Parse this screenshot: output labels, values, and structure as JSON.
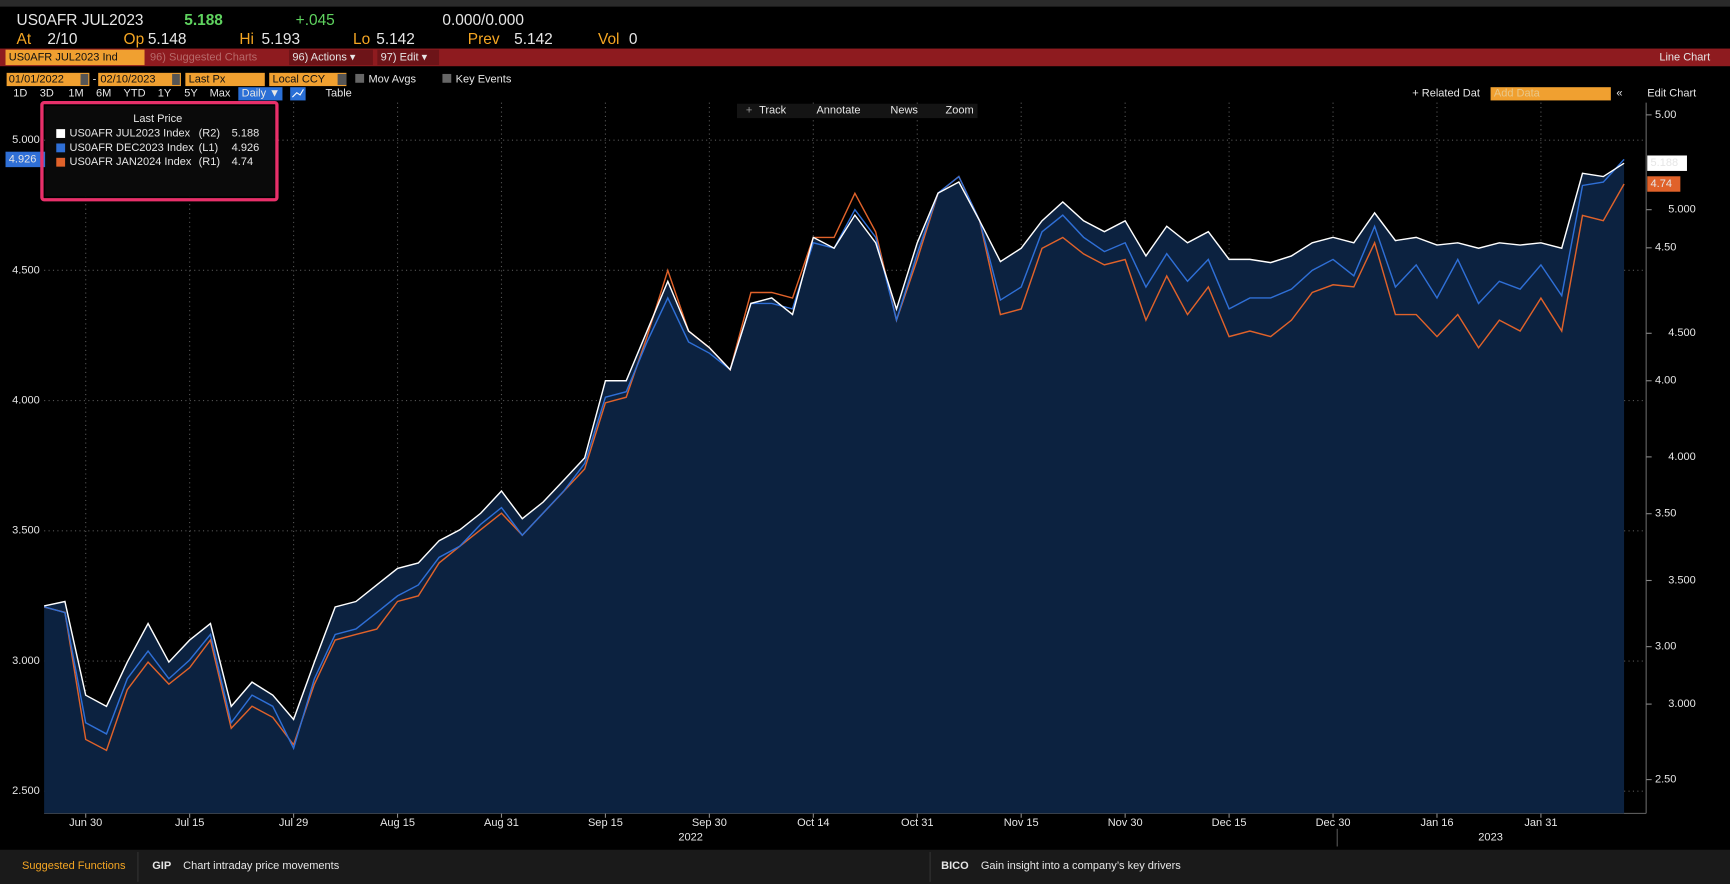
{
  "header": {
    "security": "US0AFR JUL2023",
    "last": "5.188",
    "change": "+.045",
    "bid_ask": "0.000/0.000",
    "stats": [
      {
        "label": "At",
        "value": "2/10"
      },
      {
        "label": "Op",
        "value": "5.148"
      },
      {
        "label": "Hi",
        "value": "5.193"
      },
      {
        "label": "Lo",
        "value": "5.142"
      },
      {
        "label": "Prev",
        "value": "5.142"
      },
      {
        "label": "Vol",
        "value": "0"
      }
    ]
  },
  "toolbar": {
    "ticker": "US0AFR JUL2023 Ind",
    "menus": [
      "96) Suggested Charts",
      "96) Actions ▾",
      "97) Edit ▾"
    ],
    "view": "Line Chart"
  },
  "controls": {
    "start": "01/01/2022",
    "end": "02/10/2023",
    "field": "Last Px",
    "currency": "Local CCY",
    "toggles": [
      "Mov Avgs",
      "Key Events"
    ],
    "periods": [
      "1D",
      "3D",
      "1M",
      "6M",
      "YTD",
      "1Y",
      "5Y",
      "Max"
    ],
    "frequency": "Daily ▼",
    "table": "Table",
    "related": "+ Related Dat",
    "add_data": "Add Data",
    "edit": "Edit Chart"
  },
  "chart_tools": [
    "Track",
    "Annotate",
    "News",
    "Zoom"
  ],
  "chart_data": {
    "type": "line",
    "legend_title": "Last Price",
    "categories": [
      null,
      null,
      "Jun 30",
      null,
      null,
      null,
      null,
      "Jul 15",
      null,
      null,
      null,
      null,
      "Jul 29",
      null,
      null,
      null,
      null,
      "Aug 15",
      null,
      null,
      null,
      null,
      "Aug 31",
      null,
      null,
      null,
      null,
      "Sep 15",
      null,
      null,
      null,
      null,
      "Sep 30",
      null,
      null,
      null,
      null,
      "Oct 14",
      null,
      null,
      null,
      null,
      "Oct 31",
      null,
      null,
      null,
      null,
      "Nov 15",
      null,
      null,
      null,
      null,
      "Nov 30",
      null,
      null,
      null,
      null,
      "Dec 15",
      null,
      null,
      null,
      null,
      "Dec 30",
      null,
      null,
      null,
      null,
      "Jan 16",
      null,
      null,
      null,
      null,
      "Jan 31",
      null,
      null,
      null,
      null
    ],
    "year_labels": [
      "2022",
      "2023"
    ],
    "ylim": [
      2.415,
      5.144
    ],
    "yticks": [
      {
        "value": 2.5,
        "label": "2.500"
      },
      {
        "value": 3,
        "label": "3.000"
      },
      {
        "value": 3.5,
        "label": "3.500"
      },
      {
        "value": 4,
        "label": "4.000"
      },
      {
        "value": 4.5,
        "label": "4.500"
      },
      {
        "value": 5,
        "label": "5.000"
      }
    ],
    "y2lim": [
      2.373,
      5.046
    ],
    "y2ticks": [
      {
        "value": 2.5,
        "label": "2.50"
      },
      {
        "value": 3,
        "label": "3.00"
      },
      {
        "value": 3.5,
        "label": "3.50"
      },
      {
        "value": 4,
        "label": "4.00"
      },
      {
        "value": 4.5,
        "label": "4.50"
      },
      {
        "value": 5,
        "label": "5.00"
      }
    ],
    "y3lim": [
      2.558,
      5.433
    ],
    "y3ticks": [
      {
        "value": 3,
        "label": "3.000"
      },
      {
        "value": 3.5,
        "label": "3.500"
      },
      {
        "value": 4,
        "label": "4.000"
      },
      {
        "value": 4.5,
        "label": "4.500"
      },
      {
        "value": 5,
        "label": "5.000"
      }
    ],
    "grid": true,
    "series": [
      {
        "name": "US0AFR JUL2023 Index",
        "axis_label": "(R2)",
        "axis": "y3",
        "color": "#ffffff",
        "values": [
          3.397,
          3.415,
          3.036,
          2.991,
          3.17,
          3.326,
          3.17,
          3.259,
          3.326,
          2.991,
          3.089,
          3.036,
          2.938,
          3.17,
          3.393,
          3.415,
          3.482,
          3.549,
          3.571,
          3.661,
          3.705,
          3.772,
          3.862,
          3.75,
          3.817,
          3.906,
          3.996,
          4.308,
          4.308,
          4.509,
          4.71,
          4.509,
          4.442,
          4.353,
          4.621,
          4.643,
          4.576,
          4.888,
          4.844,
          4.978,
          4.866,
          4.598,
          4.866,
          5.067,
          5.112,
          4.955,
          4.79,
          4.844,
          4.955,
          5.031,
          4.955,
          4.911,
          4.955,
          4.813,
          4.933,
          4.866,
          4.911,
          4.799,
          4.799,
          4.786,
          4.813,
          4.866,
          4.888,
          4.866,
          4.987,
          4.875,
          4.888,
          4.857,
          4.866,
          4.844,
          4.866,
          4.857,
          4.866,
          4.844,
          5.147,
          5.134,
          5.188
        ]
      },
      {
        "name": "US0AFR DEC2023 Index",
        "axis_label": "(L1)",
        "axis": "y",
        "color": "#2f6fd6",
        "values": [
          3.208,
          3.186,
          2.763,
          2.72,
          2.932,
          3.038,
          2.932,
          3.004,
          3.102,
          2.763,
          2.869,
          2.826,
          2.665,
          2.932,
          3.102,
          3.123,
          3.186,
          3.25,
          3.292,
          3.398,
          3.441,
          3.525,
          3.589,
          3.483,
          3.568,
          3.653,
          3.758,
          4.013,
          4.034,
          4.225,
          4.394,
          4.225,
          4.182,
          4.119,
          4.373,
          4.373,
          4.352,
          4.606,
          4.585,
          4.733,
          4.627,
          4.309,
          4.564,
          4.797,
          4.86,
          4.691,
          4.386,
          4.436,
          4.648,
          4.712,
          4.627,
          4.572,
          4.606,
          4.436,
          4.564,
          4.458,
          4.542,
          4.352,
          4.394,
          4.394,
          4.428,
          4.5,
          4.542,
          4.479,
          4.669,
          4.436,
          4.521,
          4.394,
          4.542,
          4.373,
          4.458,
          4.428,
          4.521,
          4.403,
          4.826,
          4.839,
          4.926
        ]
      },
      {
        "name": "US0AFR JAN2024 Index",
        "axis_label": "(R1)",
        "axis": "y2",
        "color": "#e0622a",
        "values": [
          3.149,
          3.129,
          2.651,
          2.61,
          2.838,
          2.942,
          2.859,
          2.921,
          3.025,
          2.693,
          2.776,
          2.734,
          2.631,
          2.859,
          3.025,
          3.046,
          3.066,
          3.17,
          3.191,
          3.315,
          3.378,
          3.44,
          3.502,
          3.419,
          3.502,
          3.585,
          3.668,
          3.917,
          3.938,
          4.166,
          4.415,
          4.187,
          4.124,
          4.041,
          4.332,
          4.332,
          4.311,
          4.539,
          4.539,
          4.705,
          4.56,
          4.228,
          4.456,
          4.705,
          4.768,
          4.602,
          4.249,
          4.27,
          4.498,
          4.539,
          4.477,
          4.436,
          4.456,
          4.228,
          4.394,
          4.249,
          4.353,
          4.166,
          4.187,
          4.166,
          4.228,
          4.332,
          4.361,
          4.353,
          4.519,
          4.249,
          4.249,
          4.166,
          4.249,
          4.124,
          4.228,
          4.187,
          4.311,
          4.187,
          4.622,
          4.602,
          4.74
        ]
      }
    ]
  },
  "footer": {
    "title": "Suggested Functions",
    "items": [
      {
        "code": "GIP",
        "text": "Chart intraday price movements"
      },
      {
        "code": "BICO",
        "text": "Gain insight into a company’s key drivers"
      }
    ]
  }
}
